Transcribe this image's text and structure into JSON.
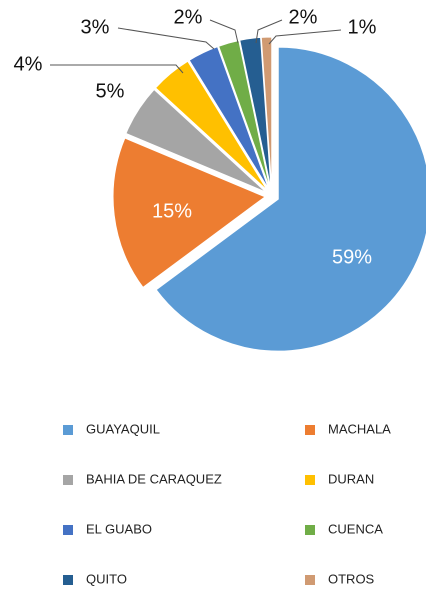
{
  "chart_data": {
    "type": "pie",
    "categories": [
      "GUAYAQUIL",
      "MACHALA",
      "BAHIA DE CARAQUEZ",
      "DURAN",
      "EL GUABO",
      "CUENCA",
      "QUITO",
      "OTROS"
    ],
    "values": [
      59,
      15,
      5,
      4,
      3,
      2,
      2,
      1
    ],
    "value_labels": [
      "59%",
      "15%",
      "5%",
      "4%",
      "3%",
      "2%",
      "2%",
      "1%"
    ],
    "colors": [
      "#5b9bd5",
      "#ed7d31",
      "#a5a5a5",
      "#ffc000",
      "#4472c4",
      "#70ad47",
      "#255e91",
      "#d09a72"
    ],
    "legend": "bottom"
  }
}
